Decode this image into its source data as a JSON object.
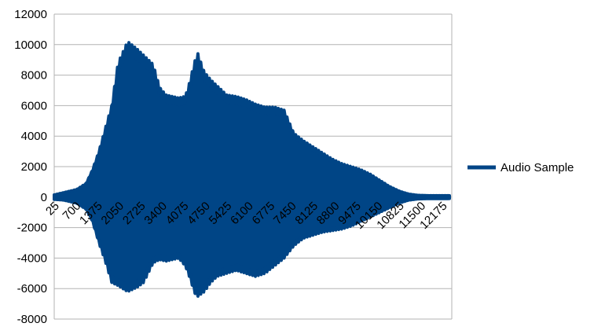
{
  "chart_data": {
    "type": "line",
    "title": "",
    "xlabel": "",
    "ylabel": "",
    "ylim": [
      -8000,
      12000
    ],
    "y_ticks": [
      -8000,
      -6000,
      -4000,
      -2000,
      0,
      2000,
      4000,
      6000,
      8000,
      10000,
      12000
    ],
    "x_ticks": [
      25,
      700,
      1375,
      2050,
      2725,
      3400,
      4075,
      4750,
      5425,
      6100,
      6775,
      7450,
      8125,
      8800,
      9475,
      10150,
      10825,
      11500,
      12175
    ],
    "xlim": [
      0,
      12450
    ],
    "grid": true,
    "legend_position": "right",
    "color": "#004586",
    "series": [
      {
        "name": "Audio Sample",
        "description_of_envelope": "oscillating waveform; values give approximate positive and negative envelope in data units",
        "envelope_x": [
          0,
          300,
          700,
          1000,
          1200,
          1400,
          1600,
          1800,
          2000,
          2300,
          2600,
          2800,
          3100,
          3300,
          3500,
          3700,
          3900,
          4100,
          4200,
          4400,
          4500,
          4700,
          4900,
          5100,
          5400,
          5700,
          6000,
          6300,
          6600,
          6900,
          7200,
          7500,
          7800,
          8100,
          8400,
          8700,
          9000,
          9300,
          9600,
          9900,
          10200,
          10500,
          10800,
          11100,
          11400,
          11700,
          12000,
          12400
        ],
        "envelope_max": [
          150,
          300,
          500,
          900,
          1800,
          3000,
          4500,
          6000,
          8800,
          10200,
          9700,
          9300,
          8700,
          7200,
          6700,
          6600,
          6500,
          6600,
          7200,
          8900,
          9400,
          8200,
          7700,
          7300,
          6700,
          6600,
          6400,
          6100,
          5900,
          5900,
          5700,
          4200,
          3700,
          3300,
          2900,
          2500,
          2200,
          2000,
          1800,
          1500,
          1100,
          700,
          400,
          200,
          120,
          100,
          100,
          100
        ],
        "envelope_min": [
          -150,
          -200,
          -400,
          -800,
          -1600,
          -3000,
          -4200,
          -5600,
          -5800,
          -6200,
          -5900,
          -5600,
          -4300,
          -4100,
          -4200,
          -4100,
          -4000,
          -4500,
          -5000,
          -6300,
          -6500,
          -6200,
          -5600,
          -5200,
          -5000,
          -4800,
          -5000,
          -5200,
          -5000,
          -4500,
          -4000,
          -3200,
          -2700,
          -2500,
          -2300,
          -2200,
          -2100,
          -1900,
          -1600,
          -1300,
          -1000,
          -700,
          -400,
          -200,
          -120,
          -100,
          -100,
          -100
        ]
      }
    ]
  }
}
